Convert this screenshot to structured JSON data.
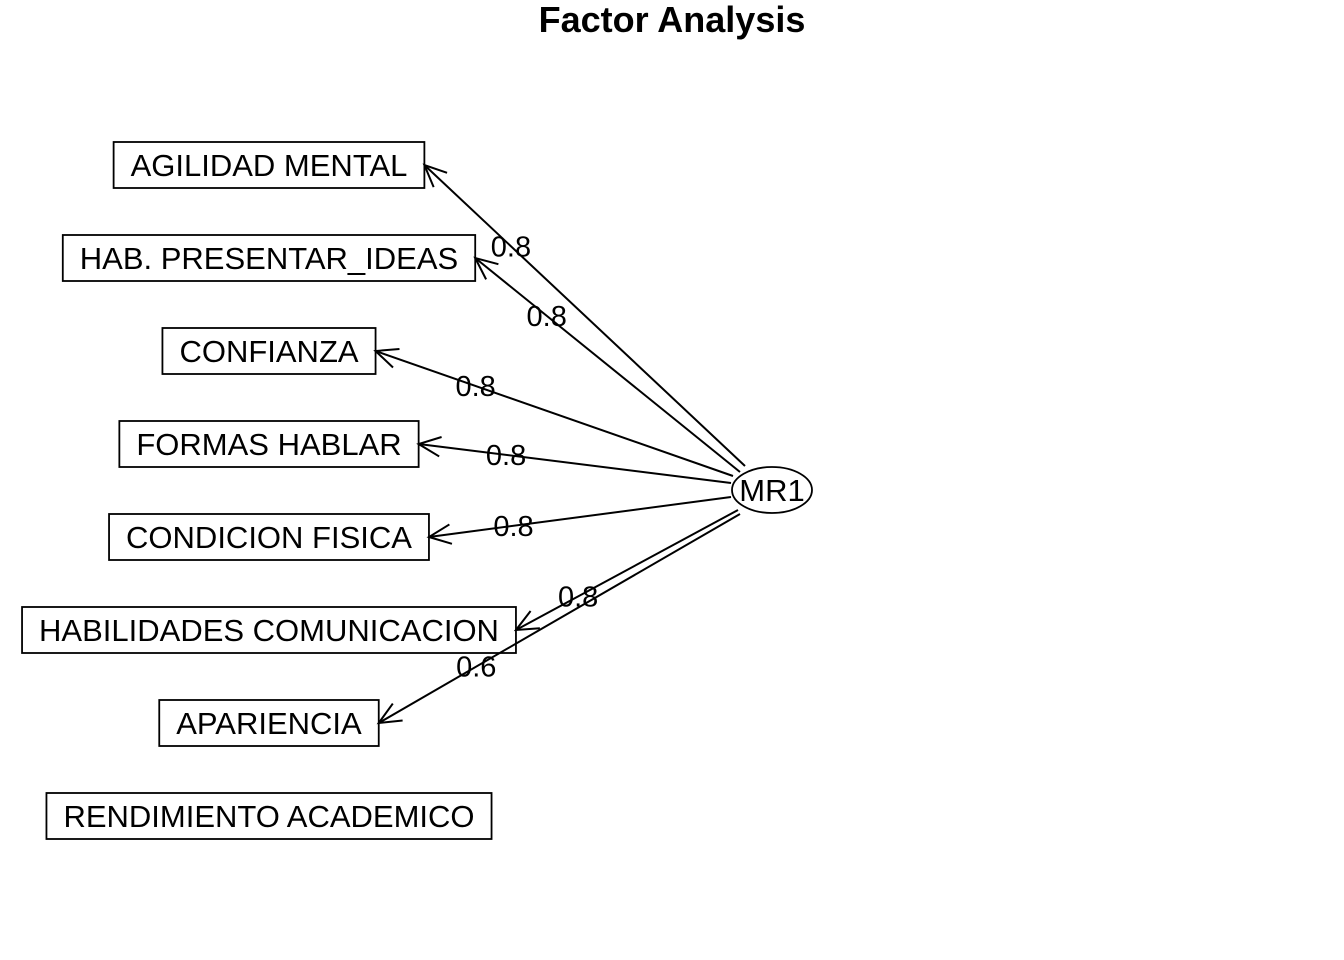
{
  "title": "Factor Analysis",
  "factor": {
    "label": "MR1"
  },
  "variables": [
    {
      "label": "AGILIDAD MENTAL",
      "loading": "0.8"
    },
    {
      "label": "HAB. PRESENTAR_IDEAS",
      "loading": "0.8"
    },
    {
      "label": "CONFIANZA",
      "loading": "0.8"
    },
    {
      "label": "FORMAS HABLAR",
      "loading": "0.8"
    },
    {
      "label": "CONDICION FISICA",
      "loading": "0.8"
    },
    {
      "label": "HABILIDADES COMUNICACION",
      "loading": "0.8"
    },
    {
      "label": "APARIENCIA",
      "loading": "0.6"
    },
    {
      "label": "RENDIMIENTO ACADEMICO",
      "loading": null
    }
  ]
}
